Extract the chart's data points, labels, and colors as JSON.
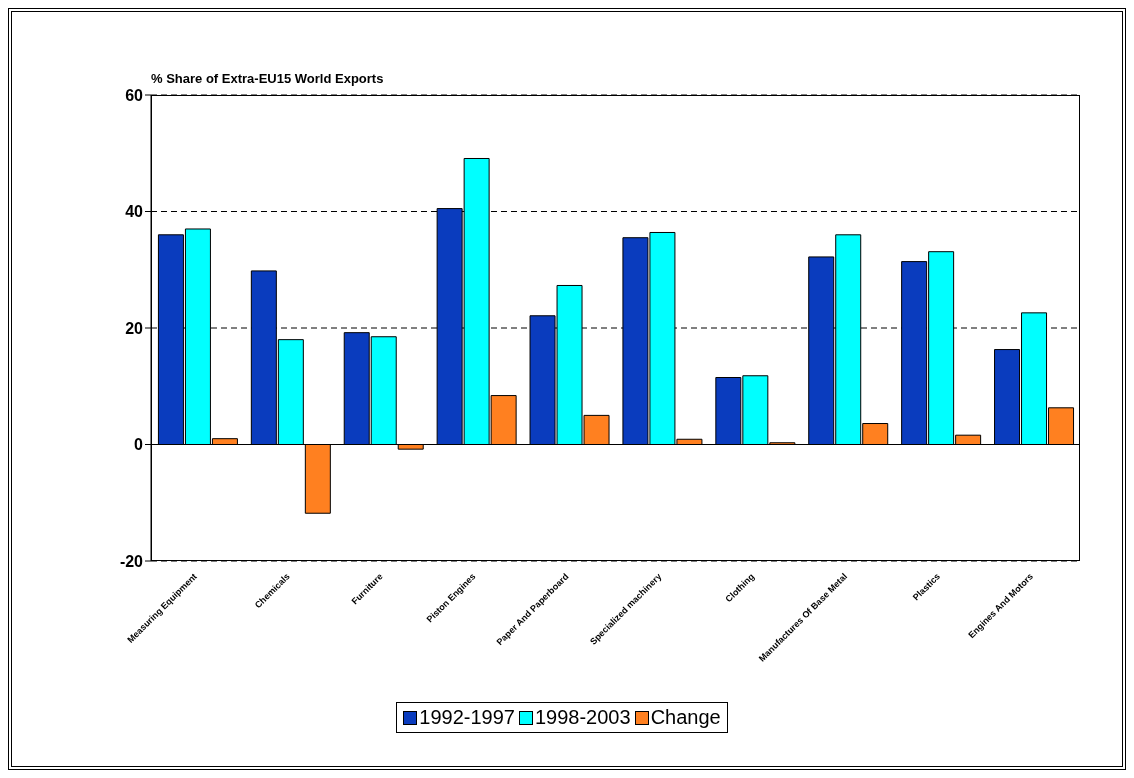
{
  "chart_data": {
    "type": "bar",
    "title": "% Share of Extra-EU15 World Exports",
    "categories": [
      "Measuring Equipment",
      "Chemicals",
      "Furniture",
      "Piston Engines",
      "Paper And Paperboard",
      "Specialized machinery",
      "Clothing",
      "Manufactures Of Base Metal",
      "Plastics",
      "Engines And Motors"
    ],
    "series": [
      {
        "name": "1992-1997",
        "color": "#0a3cbe",
        "values": [
          36.0,
          29.8,
          19.2,
          40.5,
          22.1,
          35.5,
          11.5,
          32.2,
          31.4,
          16.3
        ]
      },
      {
        "name": "1998-2003",
        "color": "#00ffff",
        "values": [
          37.0,
          18.0,
          18.5,
          49.1,
          27.3,
          36.4,
          11.8,
          36.0,
          33.1,
          22.6
        ]
      },
      {
        "name": "Change",
        "color": "#ff8020",
        "values": [
          1.0,
          -11.8,
          -0.8,
          8.4,
          5.0,
          0.9,
          0.3,
          3.6,
          1.6,
          6.3
        ]
      }
    ],
    "ylim": [
      -20,
      60
    ],
    "yticks": [
      -20,
      0,
      20,
      40,
      60
    ],
    "grid": "y",
    "legend": "bottom"
  }
}
